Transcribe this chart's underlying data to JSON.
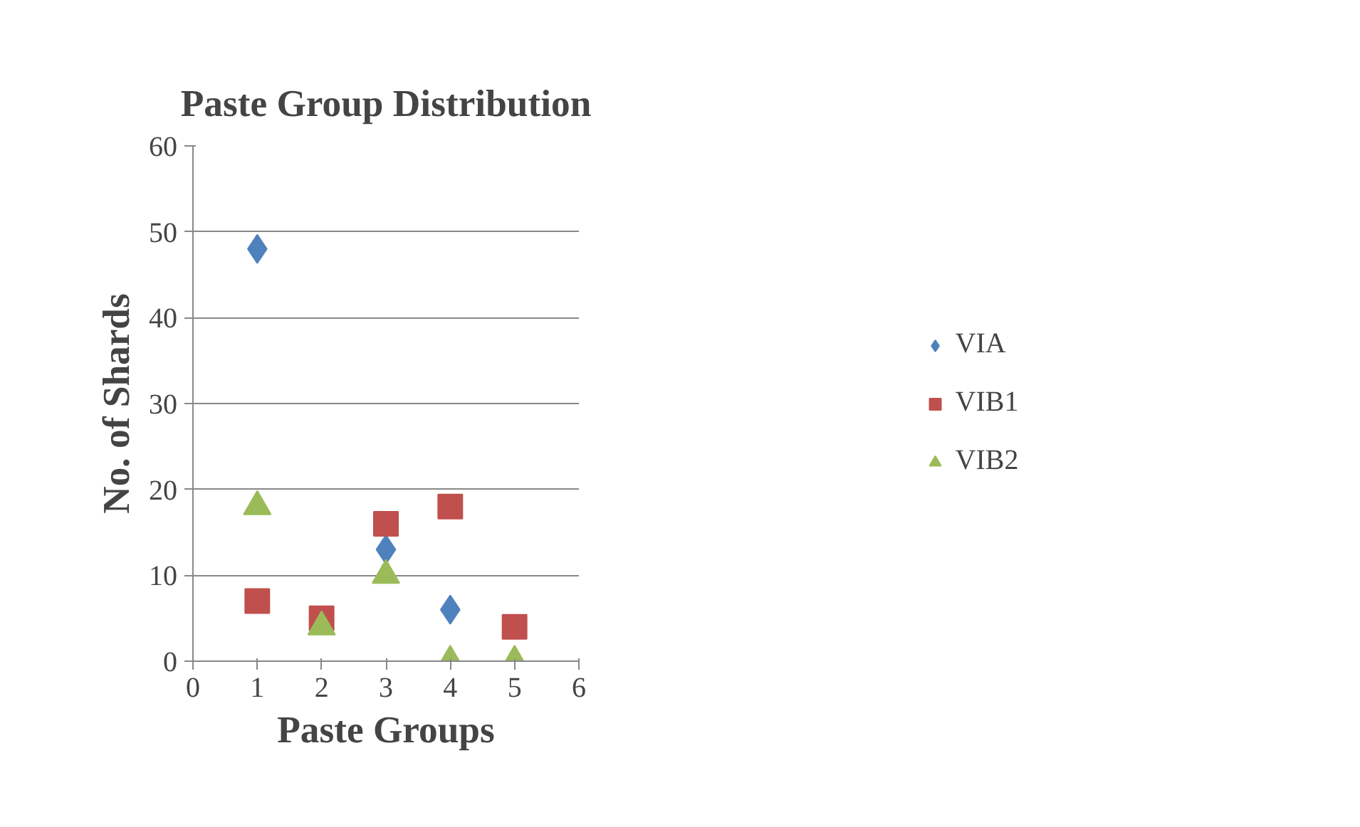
{
  "chart_data": {
    "type": "scatter",
    "title": "Paste Group Distribution",
    "xlabel": "Paste Groups",
    "ylabel": "No. of Shards",
    "x": [
      1,
      2,
      3,
      4,
      5
    ],
    "series": [
      {
        "name": "VIA",
        "color": "#4f81bd",
        "marker": "diamond",
        "values": [
          48,
          null,
          13,
          6,
          null
        ]
      },
      {
        "name": "VIB1",
        "color": "#c0504d",
        "marker": "square",
        "values": [
          7,
          5,
          16,
          18,
          4
        ]
      },
      {
        "name": "VIB2",
        "color": "#9bbb59",
        "marker": "triangle",
        "values": [
          18,
          4,
          10,
          0,
          0
        ]
      }
    ],
    "xlim": [
      0,
      6
    ],
    "xticks": [
      0,
      1,
      2,
      3,
      4,
      5,
      6
    ],
    "ylim": [
      0,
      60
    ],
    "yticks": [
      0,
      10,
      20,
      30,
      40,
      50,
      60
    ],
    "grid": "y",
    "legend": "right"
  }
}
